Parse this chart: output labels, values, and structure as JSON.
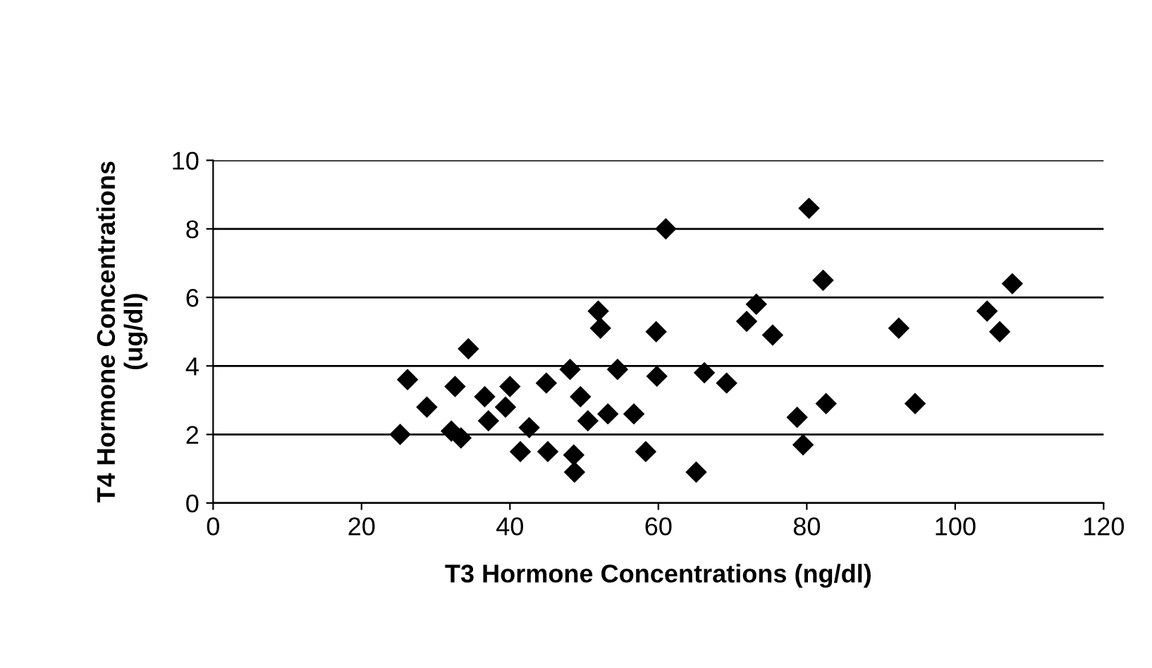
{
  "chart_data": {
    "type": "scatter",
    "xlabel": "T3 Hormone Concentrations (ng/dl)",
    "ylabel": "T4 Hormone Concentrations\n(ug/dl)",
    "x": [
      25.2,
      26.2,
      28.8,
      32.1,
      32.6,
      33.4,
      34.4,
      36.6,
      37.1,
      39.4,
      40.0,
      41.4,
      42.6,
      44.9,
      45.1,
      48.1,
      48.6,
      48.7,
      49.5,
      50.5,
      51.9,
      52.2,
      53.2,
      54.5,
      56.7,
      58.3,
      59.7,
      59.8,
      61.0,
      80.3,
      66.2,
      69.2,
      65.1,
      71.9,
      73.2,
      75.4,
      78.7,
      79.5,
      82.2,
      82.6,
      92.4,
      94.6,
      104.3,
      106.0,
      107.7
    ],
    "values": [
      2.0,
      3.6,
      2.8,
      2.1,
      3.4,
      1.9,
      4.5,
      3.1,
      2.4,
      2.8,
      3.4,
      1.5,
      2.2,
      3.5,
      1.5,
      3.9,
      1.4,
      0.9,
      3.1,
      2.4,
      5.6,
      5.1,
      2.6,
      3.9,
      2.6,
      1.5,
      5.0,
      3.7,
      8.0,
      8.6,
      3.8,
      3.5,
      0.9,
      5.3,
      5.8,
      4.9,
      2.5,
      1.7,
      6.5,
      2.9,
      5.1,
      2.9,
      5.6,
      5.0,
      6.4
    ],
    "color": "#000000",
    "marker": "diamond",
    "xlim": [
      0,
      120
    ],
    "xticks": [
      0,
      20,
      40,
      60,
      80,
      100,
      120
    ],
    "ylim": [
      0,
      10
    ],
    "yticks": [
      0,
      2,
      4,
      6,
      8,
      10
    ],
    "grid": "y",
    "legend": false
  }
}
